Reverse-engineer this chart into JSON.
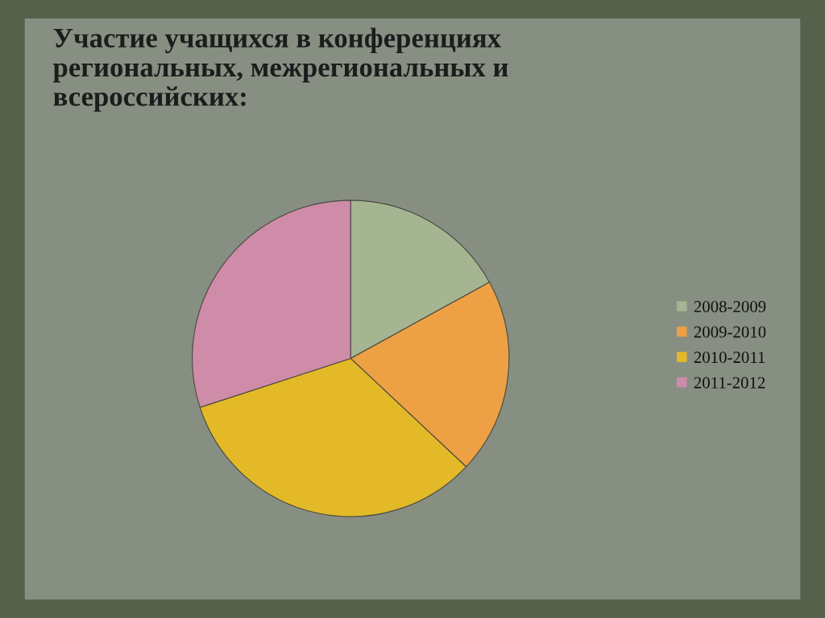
{
  "chart_data": {
    "type": "pie",
    "title": "Участие учащихся в конференциях\nрегиональных, межрегиональных и\nвсероссийских:",
    "categories": [
      "2008-2009",
      "2009-2010",
      "2010-2011",
      "2011-2012"
    ],
    "values": [
      17,
      20,
      33,
      30
    ],
    "colors": [
      "#a5b592",
      "#eda044",
      "#e3b927",
      "#cf8ca8"
    ],
    "legend": "right"
  }
}
